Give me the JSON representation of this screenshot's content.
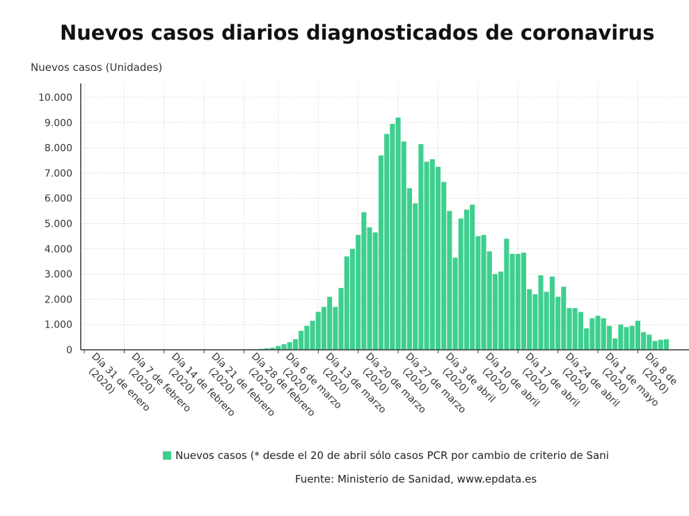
{
  "chart_data": {
    "type": "bar",
    "title": "Nuevos casos diarios diagnosticados de coronavirus",
    "ylabel": "Nuevos casos (Unidades)",
    "ylim": [
      0,
      10000
    ],
    "y_ticks": [
      "10.000",
      "9.000",
      "8.000",
      "7.000",
      "6.000",
      "5.000",
      "4.000",
      "3.000",
      "2.000",
      "1.000",
      "0"
    ],
    "y_tick_values": [
      10000,
      9000,
      8000,
      7000,
      6000,
      5000,
      4000,
      3000,
      2000,
      1000,
      0
    ],
    "grid": true,
    "legend_position": "bottom",
    "bar_color": "#3ecf8e",
    "x_tick_labels": [
      [
        "Día 31 de enero",
        "(2020)"
      ],
      [
        "Día 7 de febrero",
        "(2020)"
      ],
      [
        "Día 14 de febrero",
        "(2020)"
      ],
      [
        "Día 21 de febrero",
        "(2020)"
      ],
      [
        "Día 28 de febrero",
        "(2020)"
      ],
      [
        "Día 6 de marzo",
        "(2020)"
      ],
      [
        "Día 13 de marzo",
        "(2020)"
      ],
      [
        "Día 20 de marzo",
        "(2020)"
      ],
      [
        "Día 27 de marzo",
        "(2020)"
      ],
      [
        "Día 3 de abril",
        "(2020)"
      ],
      [
        "Día 10 de abril",
        "(2020)"
      ],
      [
        "Día 17 de abril",
        "(2020)"
      ],
      [
        "Día 24 de abril",
        "(2020)"
      ],
      [
        "Día 1 de mayo",
        "(2020)"
      ],
      [
        "Día 8 de",
        "(2020)"
      ]
    ],
    "x_tick_index": [
      0,
      7,
      14,
      21,
      28,
      34,
      41,
      48,
      55,
      62,
      69,
      76,
      83,
      90,
      97
    ],
    "series": [
      {
        "name": "Nuevos casos (* desde el 20 de abril sólo casos PCR por cambio de criterio de Sani",
        "values": [
          1,
          0,
          0,
          0,
          0,
          0,
          0,
          0,
          1,
          0,
          0,
          0,
          0,
          0,
          0,
          0,
          0,
          0,
          0,
          0,
          0,
          0,
          0,
          0,
          1,
          2,
          3,
          5,
          8,
          12,
          20,
          40,
          60,
          80,
          150,
          220,
          300,
          420,
          750,
          950,
          1150,
          1500,
          1700,
          2100,
          1700,
          2450,
          3700,
          4000,
          4550,
          5450,
          4850,
          4650,
          7700,
          8550,
          8950,
          9200,
          8250,
          6400,
          5800,
          8150,
          7450,
          7550,
          7250,
          6650,
          5500,
          3650,
          5200,
          5550,
          5750,
          4500,
          4550,
          3900,
          3000,
          3100,
          4400,
          3800,
          3800,
          3850,
          2400,
          2200,
          2950,
          2300,
          2900,
          2100,
          2500,
          1650,
          1650,
          1500,
          850,
          1250,
          1350,
          1250,
          950,
          450,
          1000,
          900,
          950,
          1150,
          700,
          600,
          350,
          400,
          420
        ]
      }
    ]
  },
  "legend_text": "Nuevos casos (* desde el 20 de abril sólo casos PCR por cambio de criterio de Sani",
  "source_text": "Fuente: Ministerio de Sanidad, www.epdata.es"
}
